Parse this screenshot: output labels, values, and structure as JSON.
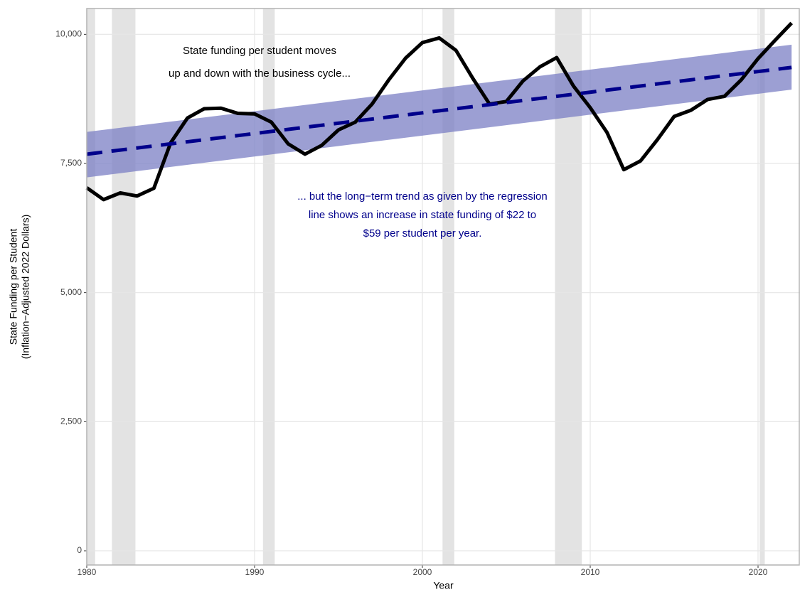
{
  "chart_data": {
    "type": "line",
    "x_label": "Year",
    "y_label": [
      "State Funding per Student",
      "(Inflation−Adjusted 2022 Dollars)"
    ],
    "annotations": [
      {
        "lines": [
          "State funding per student moves",
          "up and down with the business cycle..."
        ],
        "color": "#000000"
      },
      {
        "lines": [
          "... but the long−term trend as given by the regression",
          "line shows an increase in state funding of $22 to",
          "$59 per student per year."
        ],
        "color": "#00008b"
      }
    ],
    "x": [
      1980,
      1981,
      1982,
      1983,
      1984,
      1985,
      1986,
      1987,
      1988,
      1989,
      1990,
      1991,
      1992,
      1993,
      1994,
      1995,
      1996,
      1997,
      1998,
      1999,
      2000,
      2001,
      2002,
      2003,
      2004,
      2005,
      2006,
      2007,
      2008,
      2009,
      2010,
      2011,
      2012,
      2013,
      2014,
      2015,
      2016,
      2017,
      2018,
      2019,
      2020,
      2021,
      2022
    ],
    "series": [
      {
        "color": "#000000",
        "values": [
          7030,
          6800,
          6930,
          6870,
          7020,
          7900,
          8380,
          8560,
          8570,
          8470,
          8460,
          8300,
          7880,
          7680,
          7850,
          8150,
          8300,
          8650,
          9120,
          9540,
          9840,
          9930,
          9690,
          9150,
          8650,
          8700,
          9100,
          9370,
          9550,
          9000,
          8580,
          8100,
          7380,
          7550,
          7960,
          8410,
          8530,
          8740,
          8800,
          9120,
          9530,
          9880,
          10220
        ]
      }
    ],
    "trend": {
      "x": [
        1980,
        2022
      ],
      "values": [
        7680,
        9360
      ],
      "lower": [
        7230,
        8930
      ],
      "upper": [
        8110,
        9800
      ],
      "color": "#00008b",
      "band_color": "#7b7fc4"
    },
    "recessions": [
      [
        1980,
        1980.5
      ],
      [
        1981.5,
        1982.9
      ],
      [
        1990.5,
        1991.2
      ],
      [
        2001.2,
        2001.9
      ],
      [
        2007.9,
        2009.5
      ],
      [
        2020.1,
        2020.4
      ]
    ],
    "recession_color": "#e3e3e3",
    "xlim": [
      1980,
      2022.5
    ],
    "ylim": [
      -275,
      10500
    ],
    "xticks": [
      1980,
      1990,
      2000,
      2010,
      2020
    ],
    "yticks": [
      0,
      {
        "value": 2500,
        "label": "2,500"
      },
      {
        "value": 5000,
        "label": "5,000"
      },
      {
        "value": 7500,
        "label": "7,500"
      },
      {
        "value": 10000,
        "label": "10,000"
      }
    ],
    "grid": true
  }
}
